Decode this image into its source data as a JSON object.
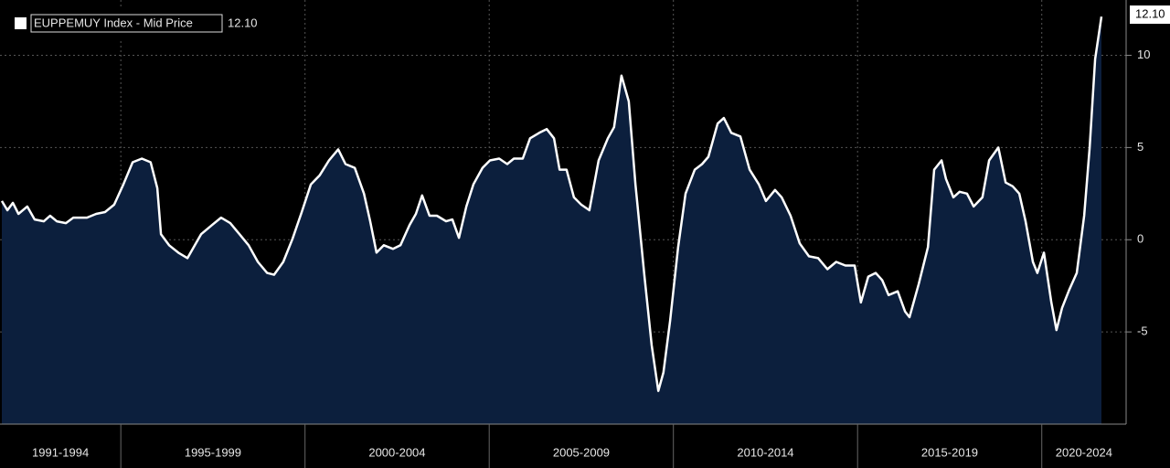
{
  "chart_data": {
    "type": "area",
    "series": [
      {
        "name": "EUPPEMUY Index - Mid Price",
        "color": "#ffffff",
        "fill": "#0c1f3d",
        "last_value_label": "12.10",
        "x": [
          1991.77,
          1991.92,
          1992.07,
          1992.22,
          1992.46,
          1992.66,
          1992.91,
          1993.08,
          1993.26,
          1993.51,
          1993.71,
          1994.08,
          1994.33,
          1994.57,
          1994.82,
          1995.07,
          1995.32,
          1995.57,
          1995.81,
          1995.99,
          1996.09,
          1996.31,
          1996.56,
          1996.81,
          1996.98,
          1997.18,
          1997.48,
          1997.72,
          1997.97,
          1998.22,
          1998.47,
          1998.72,
          1998.97,
          1999.16,
          1999.41,
          1999.66,
          1999.91,
          2000.16,
          2000.4,
          2000.65,
          2000.9,
          2001.1,
          2001.35,
          2001.6,
          2001.77,
          2001.94,
          2002.14,
          2002.39,
          2002.59,
          2002.84,
          2003.01,
          2003.18,
          2003.38,
          2003.58,
          2003.83,
          2004.0,
          2004.18,
          2004.38,
          2004.57,
          2004.82,
          2005.02,
          2005.27,
          2005.49,
          2005.67,
          2005.91,
          2006.11,
          2006.36,
          2006.56,
          2006.76,
          2006.91,
          2007.1,
          2007.3,
          2007.5,
          2007.72,
          2007.97,
          2008.22,
          2008.39,
          2008.59,
          2008.79,
          2008.97,
          2009.21,
          2009.41,
          2009.59,
          2009.73,
          2009.91,
          2010.13,
          2010.33,
          2010.58,
          2010.78,
          2010.95,
          2011.2,
          2011.37,
          2011.57,
          2011.82,
          2012.07,
          2012.32,
          2012.51,
          2012.76,
          2012.94,
          2013.18,
          2013.43,
          2013.68,
          2013.93,
          2014.18,
          2014.42,
          2014.67,
          2014.92,
          2015.09,
          2015.29,
          2015.49,
          2015.67,
          2015.84,
          2016.09,
          2016.29,
          2016.41,
          2016.66,
          2016.91,
          2017.08,
          2017.28,
          2017.4,
          2017.6,
          2017.77,
          2017.97,
          2018.15,
          2018.39,
          2018.57,
          2018.82,
          2019.02,
          2019.21,
          2019.39,
          2019.56,
          2019.76,
          2019.88,
          2020.06,
          2020.26,
          2020.4,
          2020.55,
          2020.75,
          2020.95,
          2021.15,
          2021.3,
          2021.45,
          2021.62
        ],
        "values": [
          2.1,
          1.6,
          2.0,
          1.4,
          1.8,
          1.1,
          1.0,
          1.3,
          1.0,
          0.9,
          1.2,
          1.2,
          1.4,
          1.5,
          1.9,
          3.0,
          4.2,
          4.4,
          4.2,
          2.8,
          0.3,
          -0.3,
          -0.7,
          -1.0,
          -0.4,
          0.3,
          0.8,
          1.2,
          0.9,
          0.3,
          -0.3,
          -1.2,
          -1.8,
          -1.9,
          -1.2,
          0.05,
          1.5,
          3.0,
          3.5,
          4.3,
          4.9,
          4.1,
          3.9,
          2.5,
          1.0,
          -0.7,
          -0.3,
          -0.5,
          -0.3,
          0.8,
          1.4,
          2.4,
          1.3,
          1.3,
          1.0,
          1.1,
          0.1,
          1.8,
          3.0,
          3.9,
          4.3,
          4.4,
          4.1,
          4.4,
          4.4,
          5.5,
          5.8,
          6.0,
          5.5,
          3.8,
          3.8,
          2.3,
          1.9,
          1.6,
          4.3,
          5.5,
          6.1,
          8.9,
          7.5,
          3.0,
          -1.9,
          -5.7,
          -8.2,
          -7.2,
          -4.4,
          -0.4,
          2.5,
          3.8,
          4.1,
          4.5,
          6.3,
          6.6,
          5.8,
          5.6,
          3.8,
          3.0,
          2.1,
          2.7,
          2.3,
          1.3,
          -0.2,
          -0.9,
          -1.0,
          -1.6,
          -1.2,
          -1.4,
          -1.4,
          -3.4,
          -2.0,
          -1.8,
          -2.2,
          -3.0,
          -2.8,
          -3.9,
          -4.2,
          -2.4,
          -0.4,
          3.8,
          4.3,
          3.3,
          2.3,
          2.6,
          2.5,
          1.8,
          2.3,
          4.3,
          5.0,
          3.1,
          2.9,
          2.5,
          1.0,
          -1.2,
          -1.8,
          -0.7,
          -3.4,
          -4.9,
          -3.7,
          -2.7,
          -1.8,
          1.3,
          5.0,
          9.8,
          12.1
        ]
      }
    ],
    "xlim": [
      1991.72,
      2022.29
    ],
    "xticks": [
      {
        "value": 1991,
        "label": "1991-1994"
      },
      {
        "value": 1995,
        "label": "1995-1999"
      },
      {
        "value": 2000,
        "label": "2000-2004"
      },
      {
        "value": 2005,
        "label": "2005-2009"
      },
      {
        "value": 2010,
        "label": "2010-2014"
      },
      {
        "value": 2015,
        "label": "2015-2019"
      },
      {
        "value": 2020,
        "label": "2020-2024"
      }
    ],
    "ylim": [
      -10,
      13
    ],
    "yticks": [
      -5,
      0,
      5,
      10
    ],
    "grid": true
  }
}
